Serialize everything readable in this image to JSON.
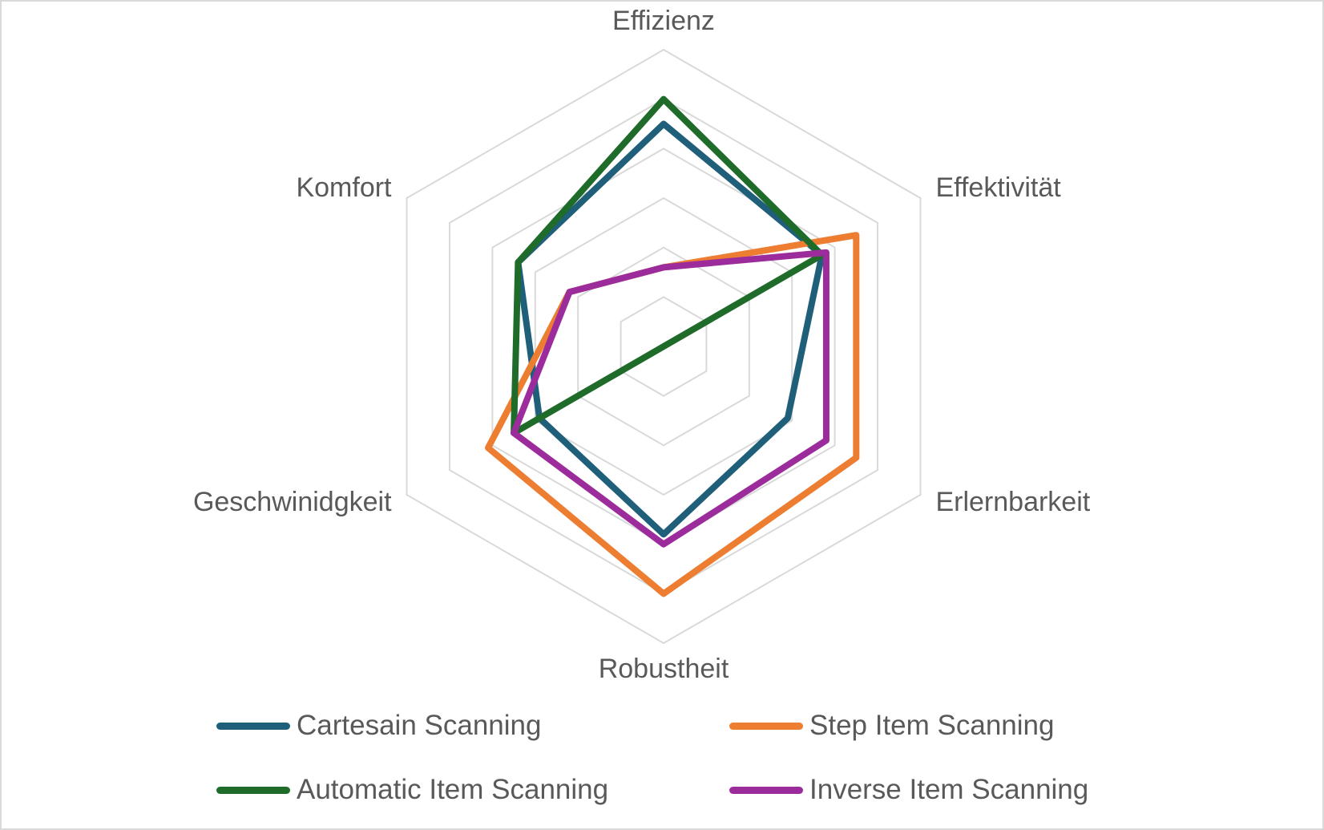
{
  "chart_data": {
    "type": "radar",
    "title": "",
    "axes": [
      "Effizienz",
      "Effektivität",
      "Erlernbarkeit",
      "Robustheit",
      "Geschwinidgkeit",
      "Komfort"
    ],
    "range": [
      0,
      6
    ],
    "gridlines": true,
    "grid_levels": [
      1,
      2,
      3,
      4,
      5,
      6
    ],
    "legend_position": "bottom",
    "series": [
      {
        "name": "Cartesain Scanning",
        "color": "#1f5f7a",
        "values": [
          4.5,
          3.7,
          2.9,
          3.8,
          2.9,
          3.4
        ]
      },
      {
        "name": "Step Item Scanning",
        "color": "#ed7d31",
        "values": [
          1.6,
          4.5,
          4.5,
          5.0,
          4.1,
          2.2
        ]
      },
      {
        "name": "Automatic Item Scanning",
        "color": "#1e6b2a",
        "values": [
          5.0,
          3.7,
          0.0,
          0.0,
          3.5,
          3.4
        ]
      },
      {
        "name": "Inverse Item Scanning",
        "color": "#9c2c9c",
        "values": [
          1.6,
          3.8,
          3.8,
          4.0,
          3.5,
          2.2
        ]
      }
    ]
  }
}
